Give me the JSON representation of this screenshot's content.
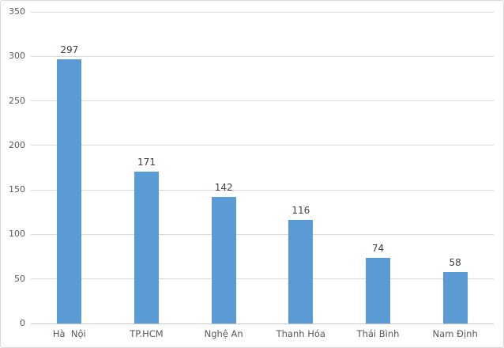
{
  "chart_data": {
    "type": "bar",
    "title": "",
    "xlabel": "",
    "ylabel": "",
    "categories": [
      "Hà  Nội",
      "TP.HCM",
      "Nghệ An",
      "Thanh Hóa",
      "Thái Bình",
      "Nam Định"
    ],
    "values": [
      297,
      171,
      142,
      116,
      74,
      58
    ],
    "data_labels": [
      "297",
      "171",
      "142",
      "116",
      "74",
      "58"
    ],
    "ylim": [
      0,
      350
    ],
    "ytick_step": 50,
    "ytick_labels": [
      "0",
      "50",
      "100",
      "150",
      "200",
      "250",
      "300",
      "350"
    ],
    "grid": true,
    "legend": false,
    "legend_position": "none"
  },
  "colors": {
    "bar": "#5B9BD5",
    "gridline": "#D9D9D9",
    "zero_line": "#C6C6C6",
    "tick_label": "#595959",
    "data_label": "#404040",
    "frame_border": "#D7D7DD",
    "background": "#FFFFFF"
  }
}
